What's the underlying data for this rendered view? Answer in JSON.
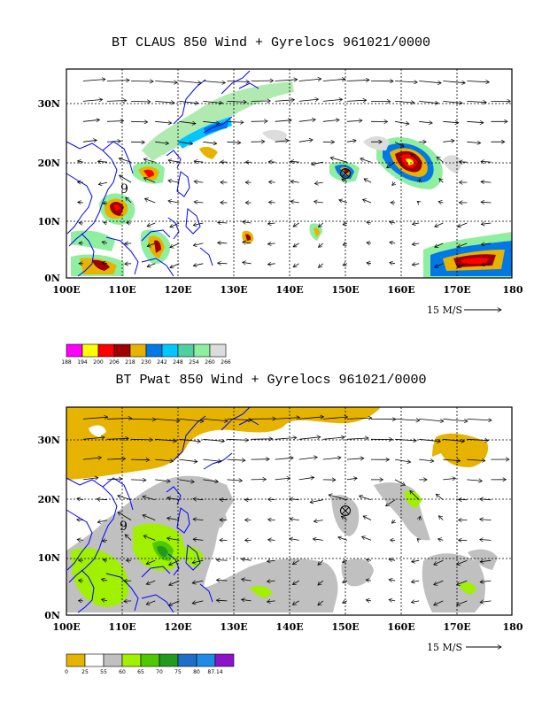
{
  "top_panel": {
    "title": "BT CLAUS 850 Wind + Gyrelocs 961021/0000",
    "x_ticks": [
      "100E",
      "110E",
      "120E",
      "130E",
      "140E",
      "150E",
      "160E",
      "170E",
      "180"
    ],
    "y_ticks": [
      "30N",
      "20N",
      "10N",
      "0N"
    ],
    "vector_ref": "15 M/S",
    "colorbar": {
      "colors": [
        "#ff00ff",
        "#ffff00",
        "#ff0000",
        "#a00000",
        "#e6b400",
        "#0078e6",
        "#00c8ff",
        "#50d0a0",
        "#90eea0",
        "#dcdcdc"
      ],
      "labels": [
        "188",
        "194",
        "200",
        "206",
        "218",
        "230",
        "242",
        "248",
        "254",
        "260",
        "266"
      ]
    },
    "marker_label": "9",
    "vector_scale": 0.28
  },
  "bottom_panel": {
    "title": "BT Pwat 850 Wind + Gyrelocs 961021/0000",
    "x_ticks": [
      "100E",
      "110E",
      "120E",
      "130E",
      "140E",
      "150E",
      "160E",
      "170E",
      "180"
    ],
    "y_ticks": [
      "30N",
      "20N",
      "10N",
      "0N"
    ],
    "vector_ref": "15 M/S",
    "colorbar": {
      "colors": [
        "#e6b400",
        "#ffffff",
        "#c0c0c0",
        "#a0f000",
        "#50c800",
        "#229a22",
        "#1e6ec8",
        "#1e8ce6",
        "#8c14c8"
      ],
      "labels": [
        "0",
        "25",
        "55",
        "60",
        "65",
        "70",
        "75",
        "80",
        "87.14"
      ]
    },
    "marker_label": "9",
    "vector_scale": 0.31
  }
}
